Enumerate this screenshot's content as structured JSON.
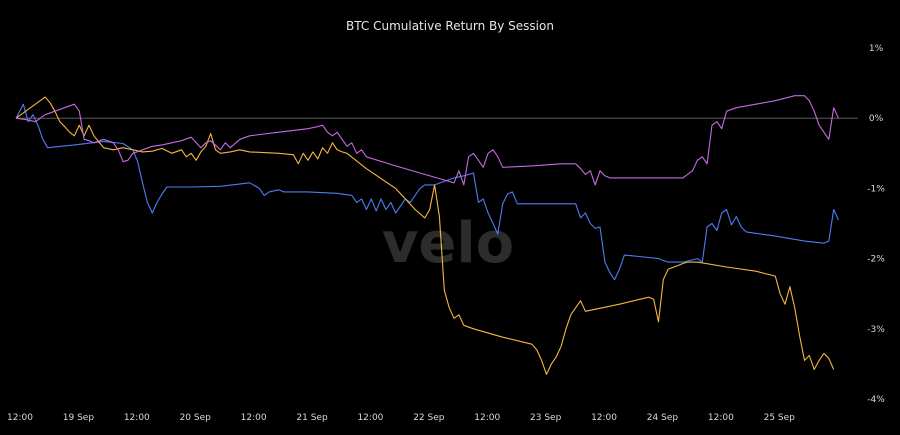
{
  "chart_data": {
    "type": "line",
    "title": "BTC Cumulative Return By Session",
    "watermark": "velo",
    "xlabel": "",
    "ylabel": "",
    "x_unit": "hours since 18 Sep 12:00",
    "xlim": [
      0,
      173
    ],
    "ylim": [
      -4,
      1
    ],
    "y_ticks": [
      {
        "value": 1,
        "label": "1%"
      },
      {
        "value": 0,
        "label": "0%"
      },
      {
        "value": -1,
        "label": "-1%"
      },
      {
        "value": -2,
        "label": "-2%"
      },
      {
        "value": -3,
        "label": "-3%"
      },
      {
        "value": -4,
        "label": "-4%"
      }
    ],
    "x_ticks": [
      {
        "value": 0,
        "label": "12:00"
      },
      {
        "value": 12,
        "label": "19 Sep"
      },
      {
        "value": 24,
        "label": "12:00"
      },
      {
        "value": 36,
        "label": "20 Sep"
      },
      {
        "value": 48,
        "label": "12:00"
      },
      {
        "value": 60,
        "label": "21 Sep"
      },
      {
        "value": 72,
        "label": "12:00"
      },
      {
        "value": 84,
        "label": "22 Sep"
      },
      {
        "value": 96,
        "label": "12:00"
      },
      {
        "value": 108,
        "label": "23 Sep"
      },
      {
        "value": 120,
        "label": "12:00"
      },
      {
        "value": 132,
        "label": "24 Sep"
      },
      {
        "value": 144,
        "label": "12:00"
      },
      {
        "value": 156,
        "label": "25 Sep"
      }
    ],
    "zero_line": 0,
    "grid": false,
    "legend": "none",
    "series": [
      {
        "color": "#4f7cf3",
        "points": [
          [
            0,
            0
          ],
          [
            1.5,
            0.2
          ],
          [
            2.5,
            -0.05
          ],
          [
            3.5,
            0.05
          ],
          [
            4.5,
            -0.1
          ],
          [
            5.5,
            -0.3
          ],
          [
            6.5,
            -0.42
          ],
          [
            12,
            -0.38
          ],
          [
            18,
            -0.33
          ],
          [
            22,
            -0.36
          ],
          [
            24,
            -0.45
          ],
          [
            25,
            -0.62
          ],
          [
            26,
            -0.92
          ],
          [
            27,
            -1.2
          ],
          [
            28,
            -1.35
          ],
          [
            29,
            -1.2
          ],
          [
            30,
            -1.08
          ],
          [
            31,
            -0.98
          ],
          [
            36,
            -0.98
          ],
          [
            42,
            -0.97
          ],
          [
            48,
            -0.92
          ],
          [
            50,
            -1.0
          ],
          [
            51,
            -1.1
          ],
          [
            52,
            -1.05
          ],
          [
            54,
            -1.02
          ],
          [
            55,
            -1.05
          ],
          [
            60,
            -1.05
          ],
          [
            66,
            -1.07
          ],
          [
            69,
            -1.1
          ],
          [
            70,
            -1.2
          ],
          [
            71,
            -1.15
          ],
          [
            72,
            -1.3
          ],
          [
            73,
            -1.15
          ],
          [
            74,
            -1.32
          ],
          [
            75,
            -1.15
          ],
          [
            76,
            -1.3
          ],
          [
            77,
            -1.2
          ],
          [
            78,
            -1.35
          ],
          [
            79,
            -1.25
          ],
          [
            80,
            -1.15
          ],
          [
            81,
            -1.2
          ],
          [
            82,
            -1.1
          ],
          [
            83,
            -1.0
          ],
          [
            84,
            -0.95
          ],
          [
            86,
            -0.95
          ],
          [
            88,
            -0.9
          ],
          [
            90,
            -0.85
          ],
          [
            92,
            -0.82
          ],
          [
            94,
            -0.78
          ],
          [
            95,
            -1.2
          ],
          [
            96,
            -1.15
          ],
          [
            97,
            -1.35
          ],
          [
            98,
            -1.5
          ],
          [
            99,
            -1.65
          ],
          [
            100,
            -1.22
          ],
          [
            101,
            -1.08
          ],
          [
            102,
            -1.05
          ],
          [
            103,
            -1.22
          ],
          [
            108,
            -1.22
          ],
          [
            112,
            -1.22
          ],
          [
            115,
            -1.22
          ],
          [
            116,
            -1.42
          ],
          [
            117,
            -1.35
          ],
          [
            118,
            -1.5
          ],
          [
            119,
            -1.57
          ],
          [
            120,
            -1.55
          ],
          [
            121,
            -2.05
          ],
          [
            122,
            -2.2
          ],
          [
            123,
            -2.3
          ],
          [
            124,
            -2.15
          ],
          [
            125,
            -1.95
          ],
          [
            128,
            -1.97
          ],
          [
            132,
            -2.0
          ],
          [
            134,
            -2.05
          ],
          [
            137,
            -2.05
          ],
          [
            140,
            -2.0
          ],
          [
            141,
            -2.05
          ],
          [
            142,
            -1.55
          ],
          [
            143,
            -1.5
          ],
          [
            144,
            -1.6
          ],
          [
            145,
            -1.35
          ],
          [
            146,
            -1.3
          ],
          [
            147,
            -1.52
          ],
          [
            148,
            -1.4
          ],
          [
            149,
            -1.55
          ],
          [
            150,
            -1.62
          ],
          [
            156,
            -1.68
          ],
          [
            162,
            -1.75
          ],
          [
            166,
            -1.78
          ],
          [
            167,
            -1.75
          ],
          [
            168,
            -1.3
          ],
          [
            169,
            -1.45
          ]
        ]
      },
      {
        "color": "#f5b740",
        "points": [
          [
            0,
            0
          ],
          [
            6,
            0.3
          ],
          [
            7,
            0.22
          ],
          [
            8,
            0.1
          ],
          [
            9,
            -0.05
          ],
          [
            10,
            -0.12
          ],
          [
            11,
            -0.2
          ],
          [
            12,
            -0.25
          ],
          [
            13,
            -0.1
          ],
          [
            14,
            -0.25
          ],
          [
            15,
            -0.1
          ],
          [
            16,
            -0.25
          ],
          [
            18,
            -0.42
          ],
          [
            20,
            -0.45
          ],
          [
            22,
            -0.42
          ],
          [
            24,
            -0.45
          ],
          [
            26,
            -0.48
          ],
          [
            28,
            -0.47
          ],
          [
            30,
            -0.43
          ],
          [
            32,
            -0.5
          ],
          [
            34,
            -0.45
          ],
          [
            35,
            -0.55
          ],
          [
            36,
            -0.5
          ],
          [
            37,
            -0.6
          ],
          [
            38,
            -0.48
          ],
          [
            39,
            -0.4
          ],
          [
            40,
            -0.22
          ],
          [
            41,
            -0.45
          ],
          [
            42,
            -0.5
          ],
          [
            44,
            -0.48
          ],
          [
            46,
            -0.45
          ],
          [
            48,
            -0.48
          ],
          [
            54,
            -0.5
          ],
          [
            57,
            -0.52
          ],
          [
            58,
            -0.65
          ],
          [
            59,
            -0.5
          ],
          [
            60,
            -0.6
          ],
          [
            61,
            -0.48
          ],
          [
            62,
            -0.58
          ],
          [
            63,
            -0.42
          ],
          [
            64,
            -0.5
          ],
          [
            65,
            -0.35
          ],
          [
            66,
            -0.45
          ],
          [
            67,
            -0.48
          ],
          [
            68,
            -0.5
          ],
          [
            72,
            -0.72
          ],
          [
            78,
            -1.0
          ],
          [
            82,
            -1.3
          ],
          [
            84,
            -1.42
          ],
          [
            85,
            -1.3
          ],
          [
            86,
            -0.95
          ],
          [
            87,
            -1.4
          ],
          [
            88,
            -2.45
          ],
          [
            89,
            -2.7
          ],
          [
            90,
            -2.85
          ],
          [
            91,
            -2.8
          ],
          [
            92,
            -2.95
          ],
          [
            94,
            -3.0
          ],
          [
            100,
            -3.12
          ],
          [
            106,
            -3.22
          ],
          [
            107,
            -3.3
          ],
          [
            108,
            -3.45
          ],
          [
            109,
            -3.65
          ],
          [
            110,
            -3.5
          ],
          [
            111,
            -3.4
          ],
          [
            112,
            -3.25
          ],
          [
            113,
            -3.0
          ],
          [
            114,
            -2.8
          ],
          [
            115,
            -2.7
          ],
          [
            116,
            -2.6
          ],
          [
            117,
            -2.75
          ],
          [
            124,
            -2.65
          ],
          [
            130,
            -2.55
          ],
          [
            131,
            -2.58
          ],
          [
            132,
            -2.9
          ],
          [
            133,
            -2.3
          ],
          [
            134,
            -2.15
          ],
          [
            136,
            -2.1
          ],
          [
            137,
            -2.07
          ],
          [
            138,
            -2.05
          ],
          [
            140,
            -2.05
          ],
          [
            146,
            -2.12
          ],
          [
            152,
            -2.18
          ],
          [
            156,
            -2.25
          ],
          [
            157,
            -2.5
          ],
          [
            158,
            -2.65
          ],
          [
            159,
            -2.4
          ],
          [
            160,
            -2.7
          ],
          [
            161,
            -3.1
          ],
          [
            162,
            -3.45
          ],
          [
            163,
            -3.38
          ],
          [
            164,
            -3.58
          ],
          [
            165,
            -3.45
          ],
          [
            166,
            -3.35
          ],
          [
            167,
            -3.42
          ],
          [
            168,
            -3.58
          ]
        ]
      },
      {
        "color": "#c56be0",
        "points": [
          [
            0,
            0
          ],
          [
            2,
            -0.02
          ],
          [
            4,
            -0.05
          ],
          [
            6,
            0.05
          ],
          [
            8,
            0.1
          ],
          [
            10,
            0.15
          ],
          [
            12,
            0.2
          ],
          [
            13,
            0.1
          ],
          [
            14,
            -0.3
          ],
          [
            15,
            -0.32
          ],
          [
            16,
            -0.35
          ],
          [
            18,
            -0.3
          ],
          [
            20,
            -0.35
          ],
          [
            21,
            -0.45
          ],
          [
            22,
            -0.62
          ],
          [
            23,
            -0.6
          ],
          [
            24,
            -0.5
          ],
          [
            26,
            -0.45
          ],
          [
            28,
            -0.4
          ],
          [
            30,
            -0.38
          ],
          [
            32,
            -0.35
          ],
          [
            34,
            -0.32
          ],
          [
            36,
            -0.27
          ],
          [
            38,
            -0.42
          ],
          [
            39,
            -0.35
          ],
          [
            40,
            -0.32
          ],
          [
            42,
            -0.45
          ],
          [
            43,
            -0.35
          ],
          [
            44,
            -0.42
          ],
          [
            46,
            -0.3
          ],
          [
            48,
            -0.25
          ],
          [
            54,
            -0.2
          ],
          [
            60,
            -0.15
          ],
          [
            62,
            -0.12
          ],
          [
            63,
            -0.1
          ],
          [
            64,
            -0.2
          ],
          [
            65,
            -0.25
          ],
          [
            66,
            -0.2
          ],
          [
            67,
            -0.3
          ],
          [
            68,
            -0.4
          ],
          [
            69,
            -0.35
          ],
          [
            70,
            -0.5
          ],
          [
            71,
            -0.45
          ],
          [
            72,
            -0.55
          ],
          [
            78,
            -0.68
          ],
          [
            84,
            -0.8
          ],
          [
            88,
            -0.88
          ],
          [
            90,
            -0.92
          ],
          [
            91,
            -0.75
          ],
          [
            92,
            -0.95
          ],
          [
            93,
            -0.55
          ],
          [
            94,
            -0.5
          ],
          [
            95,
            -0.6
          ],
          [
            96,
            -0.7
          ],
          [
            97,
            -0.5
          ],
          [
            98,
            -0.45
          ],
          [
            99,
            -0.55
          ],
          [
            100,
            -0.7
          ],
          [
            106,
            -0.68
          ],
          [
            112,
            -0.65
          ],
          [
            115,
            -0.65
          ],
          [
            116,
            -0.72
          ],
          [
            117,
            -0.8
          ],
          [
            118,
            -0.75
          ],
          [
            119,
            -0.95
          ],
          [
            120,
            -0.75
          ],
          [
            121,
            -0.82
          ],
          [
            122,
            -0.85
          ],
          [
            128,
            -0.85
          ],
          [
            134,
            -0.85
          ],
          [
            137,
            -0.85
          ],
          [
            139,
            -0.75
          ],
          [
            140,
            -0.6
          ],
          [
            141,
            -0.55
          ],
          [
            142,
            -0.65
          ],
          [
            143,
            -0.1
          ],
          [
            144,
            -0.05
          ],
          [
            145,
            -0.15
          ],
          [
            146,
            0.1
          ],
          [
            148,
            0.15
          ],
          [
            152,
            0.2
          ],
          [
            156,
            0.25
          ],
          [
            160,
            0.32
          ],
          [
            162,
            0.32
          ],
          [
            163,
            0.25
          ],
          [
            164,
            0.1
          ],
          [
            165,
            -0.1
          ],
          [
            166,
            -0.2
          ],
          [
            167,
            -0.3
          ],
          [
            168,
            0.15
          ],
          [
            169,
            0.0
          ]
        ]
      }
    ]
  }
}
